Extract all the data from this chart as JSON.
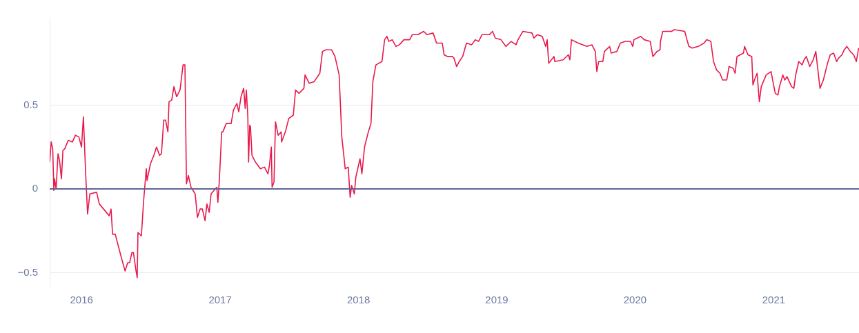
{
  "chart_data": {
    "type": "line",
    "xlim": [
      "2015-10-09",
      "2021-08-14"
    ],
    "xticks": [
      "2016",
      "2017",
      "2018",
      "2019",
      "2020",
      "2021"
    ],
    "ylim": [
      -0.58,
      1.02
    ],
    "yticks": [
      -0.5,
      0,
      0.5
    ],
    "grid": "y",
    "legend": false,
    "marker": "none",
    "line_style": "solid",
    "ref_lines": [
      {
        "axis": "y",
        "value": 0,
        "color": "#5c6690"
      }
    ],
    "x": [
      "2015-10-09",
      "2015-10-13",
      "2015-10-17",
      "2015-10-20",
      "2015-10-22",
      "2015-10-26",
      "2015-10-31",
      "2015-11-04",
      "2015-11-09",
      "2015-11-13",
      "2015-11-18",
      "2015-11-27",
      "2015-12-08",
      "2015-12-16",
      "2015-12-25",
      "2016-01-01",
      "2016-01-06",
      "2016-01-12",
      "2016-01-17",
      "2016-01-23",
      "2016-02-10",
      "2016-02-17",
      "2016-03-14",
      "2016-03-19",
      "2016-03-23",
      "2016-03-30",
      "2016-04-14",
      "2016-04-25",
      "2016-05-02",
      "2016-05-07",
      "2016-05-13",
      "2016-05-17",
      "2016-05-24",
      "2016-05-27",
      "2016-05-29",
      "2016-06-07",
      "2016-06-13",
      "2016-06-20",
      "2016-06-22",
      "2016-07-01",
      "2016-07-10",
      "2016-07-17",
      "2016-07-25",
      "2016-07-30",
      "2016-08-05",
      "2016-08-10",
      "2016-08-16",
      "2016-08-19",
      "2016-08-26",
      "2016-09-01",
      "2016-09-08",
      "2016-09-17",
      "2016-09-25",
      "2016-09-30",
      "2016-10-04",
      "2016-10-09",
      "2016-10-16",
      "2016-10-27",
      "2016-11-02",
      "2016-11-09",
      "2016-11-15",
      "2016-11-22",
      "2016-11-27",
      "2016-12-03",
      "2016-12-08",
      "2016-12-19",
      "2016-12-23",
      "2016-12-26",
      "2016-12-30",
      "2017-01-05",
      "2017-01-08",
      "2017-01-17",
      "2017-01-30",
      "2017-02-05",
      "2017-02-14",
      "2017-02-19",
      "2017-02-25",
      "2017-03-04",
      "2017-03-08",
      "2017-03-11",
      "2017-03-15",
      "2017-03-17",
      "2017-03-20",
      "2017-03-22",
      "2017-03-26",
      "2017-04-04",
      "2017-04-17",
      "2017-04-28",
      "2017-05-07",
      "2017-05-11",
      "2017-05-16",
      "2017-05-18",
      "2017-05-23",
      "2017-05-27",
      "2017-06-03",
      "2017-06-11",
      "2017-06-12",
      "2017-06-22",
      "2017-07-01",
      "2017-07-13",
      "2017-07-19",
      "2017-07-28",
      "2017-08-10",
      "2017-08-13",
      "2017-08-24",
      "2017-09-06",
      "2017-09-21",
      "2017-09-28",
      "2017-10-07",
      "2017-10-22",
      "2017-10-31",
      "2017-11-11",
      "2017-11-18",
      "2017-11-27",
      "2017-12-05",
      "2017-12-10",
      "2017-12-14",
      "2017-12-21",
      "2017-12-25",
      "2018-01-05",
      "2018-01-10",
      "2018-01-17",
      "2018-01-27",
      "2018-02-03",
      "2018-02-08",
      "2018-02-16",
      "2018-03-04",
      "2018-03-11",
      "2018-03-17",
      "2018-03-22",
      "2018-03-31",
      "2018-04-10",
      "2018-04-19",
      "2018-05-01",
      "2018-05-16",
      "2018-05-23",
      "2018-06-07",
      "2018-06-22",
      "2018-07-01",
      "2018-07-17",
      "2018-07-26",
      "2018-08-10",
      "2018-08-15",
      "2018-08-24",
      "2018-09-06",
      "2018-09-10",
      "2018-09-17",
      "2018-09-24",
      "2018-10-03",
      "2018-10-13",
      "2018-10-27",
      "2018-11-05",
      "2018-11-14",
      "2018-11-23",
      "2018-12-12",
      "2018-12-21",
      "2018-12-28",
      "2019-01-12",
      "2019-01-25",
      "2019-02-08",
      "2019-02-21",
      "2019-02-26",
      "2019-03-11",
      "2019-04-04",
      "2019-04-09",
      "2019-04-18",
      "2019-05-01",
      "2019-05-10",
      "2019-05-14",
      "2019-05-18",
      "2019-06-01",
      "2019-06-03",
      "2019-06-25",
      "2019-07-09",
      "2019-07-13",
      "2019-07-17",
      "2019-08-04",
      "2019-08-27",
      "2019-09-09",
      "2019-09-18",
      "2019-09-22",
      "2019-09-27",
      "2019-10-08",
      "2019-10-12",
      "2019-10-26",
      "2019-10-30",
      "2019-11-14",
      "2019-11-23",
      "2019-12-06",
      "2019-12-20",
      "2019-12-26",
      "2019-12-29",
      "2020-01-16",
      "2020-01-25",
      "2020-02-10",
      "2020-02-17",
      "2020-02-28",
      "2020-03-07",
      "2020-03-08",
      "2020-03-14",
      "2020-04-06",
      "2020-04-14",
      "2020-05-11",
      "2020-05-17",
      "2020-05-22",
      "2020-05-31",
      "2020-06-16",
      "2020-07-01",
      "2020-07-08",
      "2020-07-19",
      "2020-07-26",
      "2020-08-03",
      "2020-08-12",
      "2020-08-19",
      "2020-08-30",
      "2020-09-05",
      "2020-09-16",
      "2020-09-21",
      "2020-09-26",
      "2020-10-13",
      "2020-10-16",
      "2020-10-25",
      "2020-11-04",
      "2020-11-07",
      "2020-11-11",
      "2020-11-18",
      "2020-11-24",
      "2020-11-29",
      "2020-12-12",
      "2020-12-25",
      "2020-12-29",
      "2021-01-05",
      "2021-01-12",
      "2021-01-16",
      "2021-01-25",
      "2021-01-30",
      "2021-02-05",
      "2021-02-17",
      "2021-02-23",
      "2021-02-28",
      "2021-03-08",
      "2021-03-17",
      "2021-03-22",
      "2021-03-28",
      "2021-04-06",
      "2021-04-15",
      "2021-04-22",
      "2021-04-26",
      "2021-05-03",
      "2021-05-12",
      "2021-05-23",
      "2021-05-30",
      "2021-06-08",
      "2021-06-16",
      "2021-06-21",
      "2021-06-30",
      "2021-07-06",
      "2021-07-13",
      "2021-07-22",
      "2021-07-31",
      "2021-08-07",
      "2021-08-13"
    ],
    "series": [
      {
        "color": "#e8194b",
        "values": [
          0.16,
          0.28,
          0.24,
          -0.01,
          0.06,
          0.0,
          0.21,
          0.17,
          0.06,
          0.23,
          0.24,
          0.29,
          0.28,
          0.32,
          0.31,
          0.25,
          0.43,
          0.09,
          -0.15,
          -0.03,
          -0.02,
          -0.09,
          -0.16,
          -0.12,
          -0.27,
          -0.27,
          -0.4,
          -0.49,
          -0.44,
          -0.44,
          -0.38,
          -0.38,
          -0.49,
          -0.53,
          -0.26,
          -0.28,
          -0.07,
          0.12,
          0.05,
          0.15,
          0.2,
          0.25,
          0.2,
          0.21,
          0.41,
          0.41,
          0.34,
          0.52,
          0.53,
          0.61,
          0.55,
          0.59,
          0.74,
          0.74,
          0.03,
          0.08,
          0.01,
          -0.03,
          -0.17,
          -0.12,
          -0.12,
          -0.19,
          -0.09,
          -0.14,
          -0.03,
          0.0,
          0.01,
          -0.08,
          0.06,
          0.34,
          0.34,
          0.39,
          0.39,
          0.47,
          0.51,
          0.46,
          0.55,
          0.6,
          0.48,
          0.59,
          0.43,
          0.16,
          0.38,
          0.37,
          0.2,
          0.16,
          0.12,
          0.13,
          0.09,
          0.14,
          0.25,
          0.01,
          0.04,
          0.4,
          0.32,
          0.34,
          0.28,
          0.34,
          0.42,
          0.44,
          0.59,
          0.57,
          0.6,
          0.68,
          0.63,
          0.64,
          0.69,
          0.82,
          0.83,
          0.83,
          0.79,
          0.68,
          0.31,
          0.12,
          0.13,
          -0.05,
          0.02,
          -0.03,
          0.07,
          0.18,
          0.09,
          0.25,
          0.34,
          0.39,
          0.64,
          0.74,
          0.76,
          0.89,
          0.91,
          0.88,
          0.89,
          0.85,
          0.86,
          0.89,
          0.89,
          0.92,
          0.92,
          0.94,
          0.92,
          0.93,
          0.87,
          0.87,
          0.8,
          0.79,
          0.79,
          0.78,
          0.73,
          0.76,
          0.79,
          0.87,
          0.86,
          0.89,
          0.88,
          0.92,
          0.92,
          0.94,
          0.9,
          0.89,
          0.85,
          0.88,
          0.86,
          0.89,
          0.94,
          0.93,
          0.9,
          0.92,
          0.91,
          0.85,
          0.89,
          0.75,
          0.79,
          0.76,
          0.77,
          0.8,
          0.77,
          0.89,
          0.87,
          0.85,
          0.86,
          0.82,
          0.7,
          0.76,
          0.76,
          0.82,
          0.85,
          0.81,
          0.82,
          0.87,
          0.88,
          0.88,
          0.85,
          0.89,
          0.91,
          0.89,
          0.88,
          0.79,
          0.82,
          0.83,
          0.88,
          0.94,
          0.94,
          0.95,
          0.94,
          0.89,
          0.85,
          0.84,
          0.85,
          0.87,
          0.89,
          0.88,
          0.76,
          0.71,
          0.69,
          0.65,
          0.65,
          0.73,
          0.72,
          0.69,
          0.79,
          0.81,
          0.85,
          0.8,
          0.79,
          0.62,
          0.65,
          0.69,
          0.52,
          0.61,
          0.68,
          0.7,
          0.65,
          0.57,
          0.56,
          0.61,
          0.68,
          0.65,
          0.67,
          0.61,
          0.6,
          0.68,
          0.76,
          0.74,
          0.77,
          0.79,
          0.73,
          0.77,
          0.82,
          0.74,
          0.6,
          0.65,
          0.75,
          0.8,
          0.81,
          0.76,
          0.78,
          0.8,
          0.83,
          0.85,
          0.82,
          0.8,
          0.76,
          0.84
        ]
      }
    ]
  }
}
